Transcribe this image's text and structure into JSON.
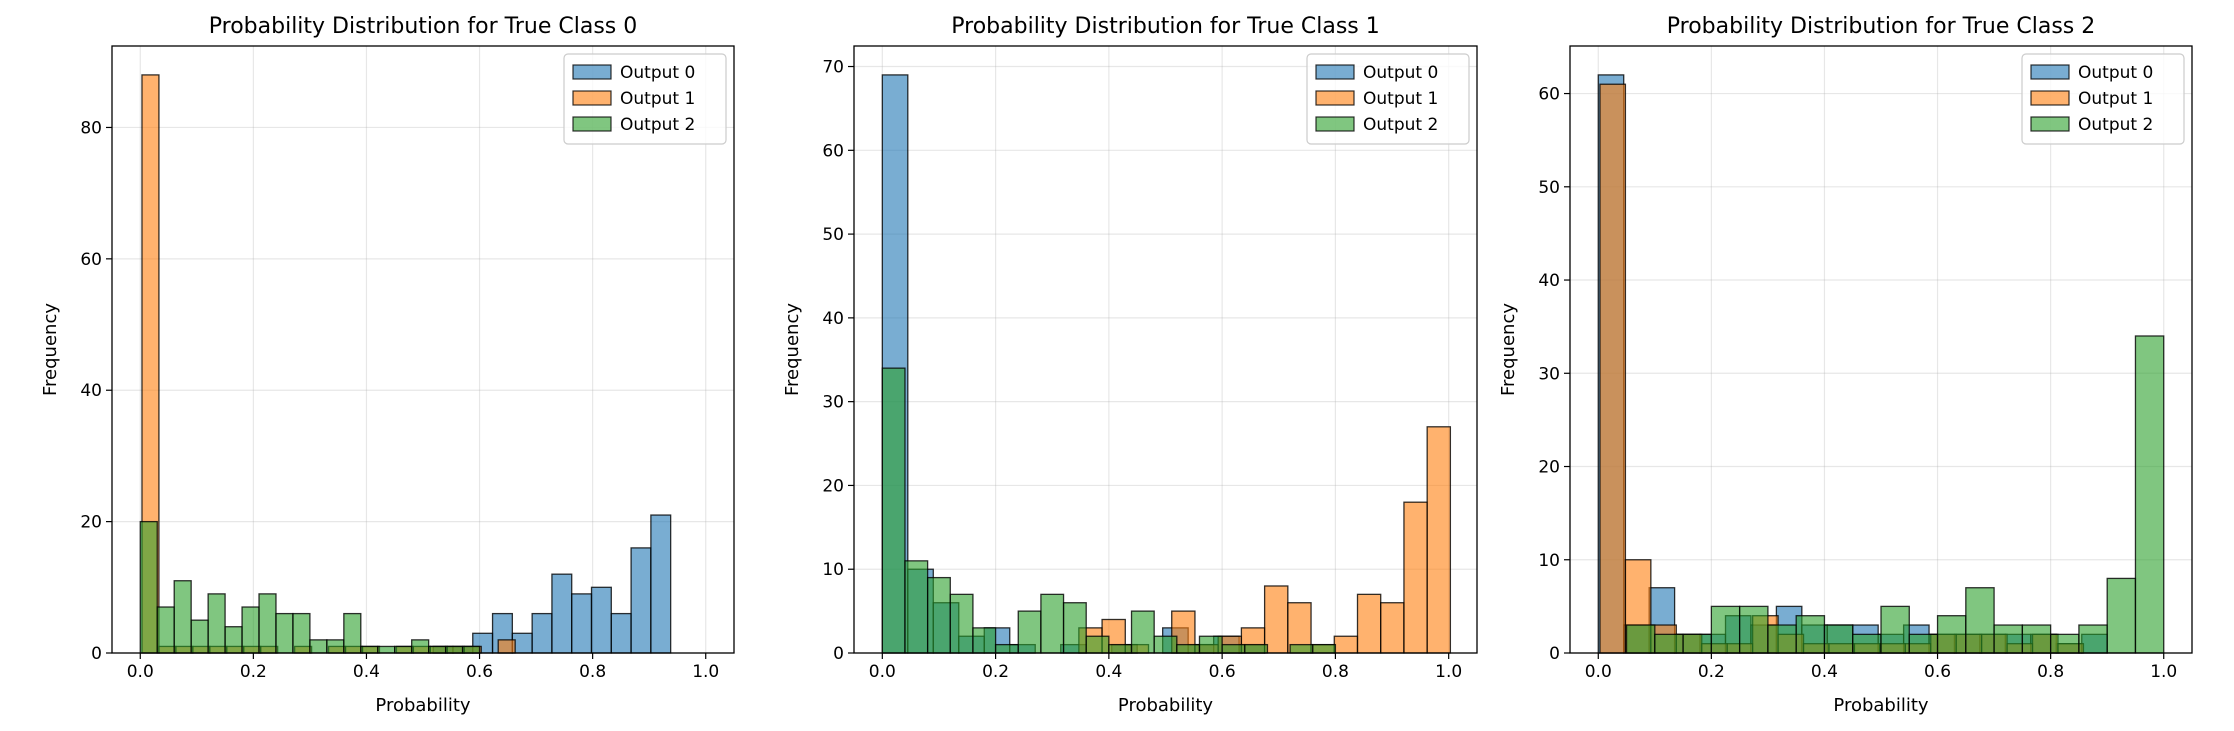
{
  "chart_data": [
    {
      "type": "histogram",
      "title": "Probability Distribution for True Class 0",
      "xlabel": "Probability",
      "ylabel": "Frequency",
      "xlim": [
        -0.05,
        1.05
      ],
      "ylim": [
        0,
        92.4
      ],
      "xticks": [
        0.0,
        0.2,
        0.4,
        0.6,
        0.8,
        1.0
      ],
      "xtick_labels": [
        "0.0",
        "0.2",
        "0.4",
        "0.6",
        "0.8",
        "1.0"
      ],
      "yticks": [
        0,
        20,
        40,
        60,
        80
      ],
      "ytick_labels": [
        "0",
        "20",
        "40",
        "60",
        "80"
      ],
      "grid": true,
      "legend_position": "top-right",
      "series": [
        {
          "name": "Output 0",
          "color": "#1f77b4",
          "bins": [
            [
              0.005,
              0.04,
              0
            ],
            [
              0.518,
              0.553,
              1
            ],
            [
              0.553,
              0.588,
              1
            ],
            [
              0.588,
              0.623,
              3
            ],
            [
              0.623,
              0.658,
              6
            ],
            [
              0.658,
              0.693,
              3
            ],
            [
              0.693,
              0.728,
              6
            ],
            [
              0.728,
              0.763,
              12
            ],
            [
              0.763,
              0.798,
              9
            ],
            [
              0.798,
              0.833,
              10
            ],
            [
              0.833,
              0.868,
              6
            ],
            [
              0.868,
              0.903,
              16
            ],
            [
              0.903,
              0.938,
              21
            ]
          ]
        },
        {
          "name": "Output 1",
          "color": "#ff7f0e",
          "bins": [
            [
              0.003,
              0.033,
              88
            ],
            [
              0.033,
              0.063,
              1
            ],
            [
              0.063,
              0.093,
              1
            ],
            [
              0.093,
              0.123,
              1
            ],
            [
              0.123,
              0.153,
              1
            ],
            [
              0.153,
              0.183,
              1
            ],
            [
              0.183,
              0.213,
              1
            ],
            [
              0.213,
              0.243,
              1
            ],
            [
              0.273,
              0.303,
              1
            ],
            [
              0.333,
              0.363,
              1
            ],
            [
              0.363,
              0.393,
              1
            ],
            [
              0.393,
              0.423,
              1
            ],
            [
              0.453,
              0.483,
              1
            ],
            [
              0.483,
              0.513,
              1
            ],
            [
              0.513,
              0.543,
              1
            ],
            [
              0.543,
              0.573,
              1
            ],
            [
              0.573,
              0.603,
              1
            ],
            [
              0.633,
              0.663,
              2
            ]
          ]
        },
        {
          "name": "Output 2",
          "color": "#2ca02c",
          "bins": [
            [
              0.0,
              0.03,
              20
            ],
            [
              0.03,
              0.06,
              7
            ],
            [
              0.06,
              0.09,
              11
            ],
            [
              0.09,
              0.12,
              5
            ],
            [
              0.12,
              0.15,
              9
            ],
            [
              0.15,
              0.18,
              4
            ],
            [
              0.18,
              0.21,
              7
            ],
            [
              0.21,
              0.24,
              9
            ],
            [
              0.24,
              0.27,
              6
            ],
            [
              0.27,
              0.3,
              6
            ],
            [
              0.3,
              0.33,
              2
            ],
            [
              0.33,
              0.36,
              2
            ],
            [
              0.36,
              0.39,
              6
            ],
            [
              0.39,
              0.42,
              1
            ],
            [
              0.42,
              0.45,
              1
            ],
            [
              0.45,
              0.48,
              1
            ],
            [
              0.48,
              0.51,
              2
            ],
            [
              0.51,
              0.54,
              1
            ],
            [
              0.54,
              0.57,
              1
            ],
            [
              0.57,
              0.6,
              1
            ]
          ]
        }
      ]
    },
    {
      "type": "histogram",
      "title": "Probability Distribution for True Class 1",
      "xlabel": "Probability",
      "ylabel": "Frequency",
      "xlim": [
        -0.05,
        1.05
      ],
      "ylim": [
        0,
        72.45
      ],
      "xticks": [
        0.0,
        0.2,
        0.4,
        0.6,
        0.8,
        1.0
      ],
      "xtick_labels": [
        "0.0",
        "0.2",
        "0.4",
        "0.6",
        "0.8",
        "1.0"
      ],
      "yticks": [
        0,
        10,
        20,
        30,
        40,
        50,
        60,
        70
      ],
      "ytick_labels": [
        "0",
        "10",
        "20",
        "30",
        "40",
        "50",
        "60",
        "70"
      ],
      "grid": true,
      "legend_position": "top-right",
      "series": [
        {
          "name": "Output 0",
          "color": "#1f77b4",
          "bins": [
            [
              0.0,
              0.045,
              69
            ],
            [
              0.045,
              0.09,
              10
            ],
            [
              0.09,
              0.135,
              6
            ],
            [
              0.135,
              0.18,
              2
            ],
            [
              0.18,
              0.225,
              3
            ],
            [
              0.225,
              0.27,
              1
            ],
            [
              0.315,
              0.36,
              1
            ],
            [
              0.405,
              0.45,
              1
            ],
            [
              0.495,
              0.54,
              3
            ],
            [
              0.54,
              0.585,
              1
            ],
            [
              0.585,
              0.63,
              2
            ],
            [
              0.63,
              0.675,
              1
            ]
          ]
        },
        {
          "name": "Output 1",
          "color": "#ff7f0e",
          "bins": [
            [
              0.02,
              0.061,
              0
            ],
            [
              0.347,
              0.388,
              3
            ],
            [
              0.388,
              0.429,
              4
            ],
            [
              0.429,
              0.47,
              1
            ],
            [
              0.511,
              0.552,
              5
            ],
            [
              0.552,
              0.593,
              1
            ],
            [
              0.593,
              0.634,
              2
            ],
            [
              0.634,
              0.675,
              3
            ],
            [
              0.675,
              0.716,
              8
            ],
            [
              0.716,
              0.757,
              6
            ],
            [
              0.757,
              0.798,
              1
            ],
            [
              0.798,
              0.839,
              2
            ],
            [
              0.839,
              0.88,
              7
            ],
            [
              0.88,
              0.921,
              6
            ],
            [
              0.921,
              0.962,
              18
            ],
            [
              0.962,
              1.003,
              27
            ]
          ]
        },
        {
          "name": "Output 2",
          "color": "#2ca02c",
          "bins": [
            [
              0.0,
              0.04,
              34
            ],
            [
              0.04,
              0.08,
              11
            ],
            [
              0.08,
              0.12,
              9
            ],
            [
              0.12,
              0.16,
              7
            ],
            [
              0.16,
              0.2,
              3
            ],
            [
              0.2,
              0.24,
              1
            ],
            [
              0.24,
              0.28,
              5
            ],
            [
              0.28,
              0.32,
              7
            ],
            [
              0.32,
              0.36,
              6
            ],
            [
              0.36,
              0.4,
              2
            ],
            [
              0.4,
              0.44,
              1
            ],
            [
              0.44,
              0.48,
              5
            ],
            [
              0.48,
              0.52,
              2
            ],
            [
              0.52,
              0.56,
              1
            ],
            [
              0.56,
              0.6,
              2
            ],
            [
              0.6,
              0.64,
              1
            ],
            [
              0.64,
              0.68,
              1
            ],
            [
              0.72,
              0.76,
              1
            ],
            [
              0.76,
              0.8,
              1
            ]
          ]
        }
      ]
    },
    {
      "type": "histogram",
      "title": "Probability Distribution for True Class 2",
      "xlabel": "Probability",
      "ylabel": "Frequency",
      "xlim": [
        -0.05,
        1.05
      ],
      "ylim": [
        0,
        65.1
      ],
      "xticks": [
        0.0,
        0.2,
        0.4,
        0.6,
        0.8,
        1.0
      ],
      "xtick_labels": [
        "0.0",
        "0.2",
        "0.4",
        "0.6",
        "0.8",
        "1.0"
      ],
      "yticks": [
        0,
        10,
        20,
        30,
        40,
        50,
        60
      ],
      "ytick_labels": [
        "0",
        "10",
        "20",
        "30",
        "40",
        "50",
        "60"
      ],
      "grid": true,
      "legend_position": "top-right",
      "series": [
        {
          "name": "Output 0",
          "color": "#1f77b4",
          "bins": [
            [
              0.0,
              0.045,
              62
            ],
            [
              0.045,
              0.09,
              3
            ],
            [
              0.09,
              0.135,
              7
            ],
            [
              0.135,
              0.18,
              2
            ],
            [
              0.18,
              0.225,
              2
            ],
            [
              0.225,
              0.27,
              4
            ],
            [
              0.27,
              0.315,
              3
            ],
            [
              0.315,
              0.36,
              5
            ],
            [
              0.36,
              0.405,
              3
            ],
            [
              0.405,
              0.45,
              3
            ],
            [
              0.45,
              0.495,
              3
            ],
            [
              0.495,
              0.54,
              2
            ],
            [
              0.54,
              0.585,
              3
            ],
            [
              0.585,
              0.63,
              2
            ],
            [
              0.63,
              0.675,
              2
            ],
            [
              0.675,
              0.72,
              2
            ],
            [
              0.72,
              0.765,
              2
            ],
            [
              0.765,
              0.81,
              2
            ],
            [
              0.81,
              0.855,
              1
            ],
            [
              0.855,
              0.9,
              2
            ]
          ]
        },
        {
          "name": "Output 1",
          "color": "#ff7f0e",
          "bins": [
            [
              0.003,
              0.048,
              61
            ],
            [
              0.048,
              0.093,
              10
            ],
            [
              0.093,
              0.138,
              3
            ],
            [
              0.138,
              0.183,
              2
            ],
            [
              0.183,
              0.228,
              1
            ],
            [
              0.228,
              0.273,
              1
            ],
            [
              0.273,
              0.318,
              4
            ],
            [
              0.318,
              0.363,
              2
            ],
            [
              0.363,
              0.408,
              1
            ],
            [
              0.408,
              0.453,
              1
            ],
            [
              0.453,
              0.498,
              1
            ],
            [
              0.498,
              0.543,
              1
            ],
            [
              0.543,
              0.588,
              1
            ],
            [
              0.588,
              0.633,
              2
            ],
            [
              0.633,
              0.678,
              2
            ],
            [
              0.678,
              0.723,
              2
            ],
            [
              0.723,
              0.768,
              1
            ],
            [
              0.768,
              0.813,
              2
            ],
            [
              0.813,
              0.858,
              1
            ]
          ]
        },
        {
          "name": "Output 2",
          "color": "#2ca02c",
          "bins": [
            [
              0.0,
              0.05,
              0
            ],
            [
              0.05,
              0.1,
              3
            ],
            [
              0.1,
              0.15,
              2
            ],
            [
              0.15,
              0.2,
              2
            ],
            [
              0.2,
              0.25,
              5
            ],
            [
              0.25,
              0.3,
              5
            ],
            [
              0.3,
              0.35,
              3
            ],
            [
              0.35,
              0.4,
              4
            ],
            [
              0.4,
              0.45,
              3
            ],
            [
              0.45,
              0.5,
              2
            ],
            [
              0.5,
              0.55,
              5
            ],
            [
              0.55,
              0.6,
              2
            ],
            [
              0.6,
              0.65,
              4
            ],
            [
              0.65,
              0.7,
              7
            ],
            [
              0.7,
              0.75,
              3
            ],
            [
              0.75,
              0.8,
              3
            ],
            [
              0.8,
              0.85,
              2
            ],
            [
              0.85,
              0.9,
              3
            ],
            [
              0.9,
              0.95,
              8
            ],
            [
              0.95,
              1.0,
              34
            ]
          ]
        }
      ]
    }
  ]
}
